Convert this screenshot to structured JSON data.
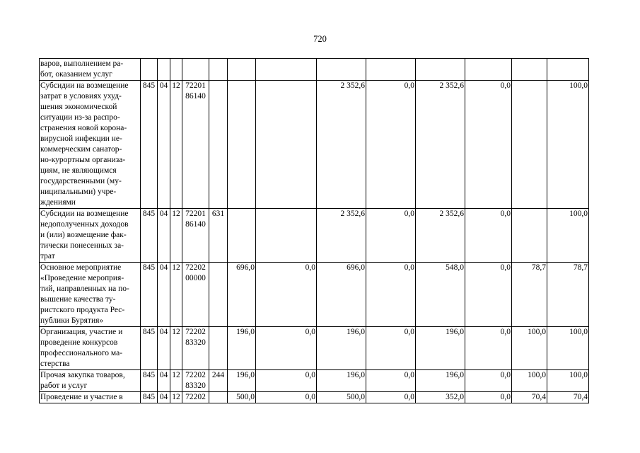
{
  "page_number": "720",
  "colors": {
    "background": "#ffffff",
    "text": "#000000",
    "border": "#000000"
  },
  "table": {
    "rows": [
      {
        "name": "варов, выполнением ра-\nбот, оказанием услуг",
        "grbs": "",
        "razdel": "",
        "podrazdel": "",
        "code": "",
        "subcode": "",
        "values": [
          "",
          "",
          "",
          "",
          "",
          "",
          "",
          ""
        ]
      },
      {
        "name": "Субсидии на возмещение\nзатрат в условиях ухуд-\nшения экономической\nситуации из-за распро-\nстранения новой корона-\nвирусной инфекции не-\nкоммерческим санатор-\nно-курортным организа-\nциям, не являющимся\nгосударственными (му-\nниципальными) учре-\nждениями",
        "grbs": "845",
        "razdel": "04",
        "podrazdel": "12",
        "code": "72201\n86140",
        "subcode": "",
        "values": [
          "",
          "",
          "2 352,6",
          "0,0",
          "2 352,6",
          "0,0",
          "",
          "100,0"
        ]
      },
      {
        "name": "Субсидии на возмещение\nнедополученных доходов\nи (или) возмещение фак-\nтически понесенных за-\nтрат",
        "grbs": "845",
        "razdel": "04",
        "podrazdel": "12",
        "code": "72201\n86140",
        "subcode": "631",
        "values": [
          "",
          "",
          "2 352,6",
          "0,0",
          "2 352,6",
          "0,0",
          "",
          "100,0"
        ]
      },
      {
        "name": "Основное мероприятие\n«Проведение мероприя-\nтий, направленных на по-\nвышение качества ту-\nристского продукта Рес-\nпублики Бурятия»",
        "grbs": "845",
        "razdel": "04",
        "podrazdel": "12",
        "code": "72202\n00000",
        "subcode": "",
        "values": [
          "696,0",
          "0,0",
          "696,0",
          "0,0",
          "548,0",
          "0,0",
          "78,7",
          "78,7"
        ]
      },
      {
        "name": "Организация, участие и\nпроведение конкурсов\nпрофессионального ма-\nстерства",
        "grbs": "845",
        "razdel": "04",
        "podrazdel": "12",
        "code": "72202\n83320",
        "subcode": "",
        "values": [
          "196,0",
          "0,0",
          "196,0",
          "0,0",
          "196,0",
          "0,0",
          "100,0",
          "100,0"
        ]
      },
      {
        "name": "Прочая закупка товаров,\nработ и услуг",
        "grbs": "845",
        "razdel": "04",
        "podrazdel": "12",
        "code": "72202\n83320",
        "subcode": "244",
        "values": [
          "196,0",
          "0,0",
          "196,0",
          "0,0",
          "196,0",
          "0,0",
          "100,0",
          "100,0"
        ]
      },
      {
        "name": "Проведение и участие в",
        "grbs": "845",
        "razdel": "04",
        "podrazdel": "12",
        "code": "72202",
        "subcode": "",
        "values": [
          "500,0",
          "0,0",
          "500,0",
          "0,0",
          "352,0",
          "0,0",
          "70,4",
          "70,4"
        ]
      }
    ]
  }
}
